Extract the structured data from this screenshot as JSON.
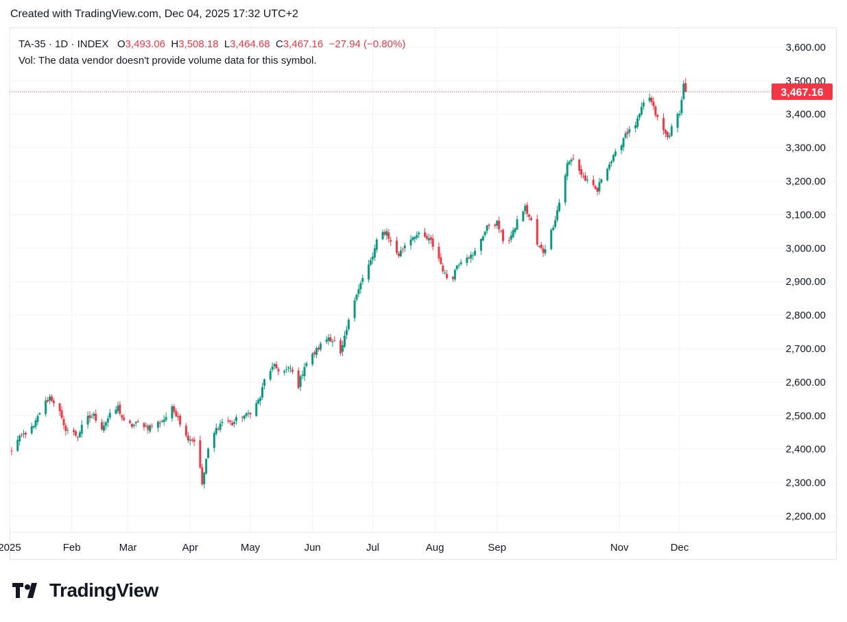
{
  "caption": "Created with TradingView.com, Dec 04, 2025 17:32 UTC+2",
  "legend": {
    "symbol": "TA-35 · 1D · INDEX",
    "o_label": "O",
    "o_value": "3,493.06",
    "h_label": "H",
    "h_value": "3,508.18",
    "l_label": "L",
    "l_value": "3,464.68",
    "c_label": "C",
    "c_value": "3,467.16",
    "change": "−27.94 (−0.80%)"
  },
  "vol_text": "Vol: The data vendor doesn't provide volume data for this symbol.",
  "last_price_label": "3,467.16",
  "brand": "TradingView",
  "colors": {
    "up": "#089981",
    "down": "#f23645",
    "grid": "#f0f3fa",
    "text": "#131722",
    "frame": "#e0e3eb"
  },
  "chart_data": {
    "type": "candlestick",
    "symbol": "TA-35",
    "interval": "1D",
    "y_ticks": [
      "2,200.00",
      "2,300.00",
      "2,400.00",
      "2,500.00",
      "2,600.00",
      "2,700.00",
      "2,800.00",
      "2,900.00",
      "3,000.00",
      "3,100.00",
      "3,200.00",
      "3,300.00",
      "3,400.00",
      "3,500.00",
      "3,600.00"
    ],
    "ylim": [
      2150,
      3650
    ],
    "x_ticks": [
      {
        "label": "2025",
        "date": "2025-01-01"
      },
      {
        "label": "Feb",
        "date": "2025-02-01"
      },
      {
        "label": "Mar",
        "date": "2025-03-01"
      },
      {
        "label": "Apr",
        "date": "2025-04-01"
      },
      {
        "label": "May",
        "date": "2025-05-01"
      },
      {
        "label": "Jun",
        "date": "2025-06-01"
      },
      {
        "label": "Jul",
        "date": "2025-07-01"
      },
      {
        "label": "Aug",
        "date": "2025-08-01"
      },
      {
        "label": "Sep",
        "date": "2025-09-01"
      },
      {
        "label": "Nov",
        "date": "2025-11-01"
      },
      {
        "label": "Dec",
        "date": "2025-12-01"
      }
    ],
    "xlim": [
      "2025-01-01",
      "2025-12-15"
    ],
    "last_price": 3467.16,
    "close_path": [
      [
        "2025-01-01",
        2390
      ],
      [
        "2025-01-05",
        2425
      ],
      [
        "2025-01-09",
        2450
      ],
      [
        "2025-01-13",
        2465
      ],
      [
        "2025-01-17",
        2525
      ],
      [
        "2025-01-21",
        2555
      ],
      [
        "2025-01-25",
        2530
      ],
      [
        "2025-01-28",
        2465
      ],
      [
        "2025-02-01",
        2450
      ],
      [
        "2025-02-04",
        2440
      ],
      [
        "2025-02-08",
        2490
      ],
      [
        "2025-02-12",
        2500
      ],
      [
        "2025-02-16",
        2465
      ],
      [
        "2025-02-20",
        2500
      ],
      [
        "2025-02-24",
        2525
      ],
      [
        "2025-02-27",
        2480
      ],
      [
        "2025-03-03",
        2470
      ],
      [
        "2025-03-07",
        2480
      ],
      [
        "2025-03-11",
        2465
      ],
      [
        "2025-03-15",
        2475
      ],
      [
        "2025-03-19",
        2490
      ],
      [
        "2025-03-23",
        2520
      ],
      [
        "2025-03-26",
        2500
      ],
      [
        "2025-03-29",
        2440
      ],
      [
        "2025-04-02",
        2430
      ],
      [
        "2025-04-05",
        2410
      ],
      [
        "2025-04-07",
        2290
      ],
      [
        "2025-04-09",
        2370
      ],
      [
        "2025-04-11",
        2420
      ],
      [
        "2025-04-14",
        2460
      ],
      [
        "2025-04-18",
        2490
      ],
      [
        "2025-04-22",
        2475
      ],
      [
        "2025-04-26",
        2500
      ],
      [
        "2025-04-29",
        2500
      ],
      [
        "2025-05-03",
        2525
      ],
      [
        "2025-05-06",
        2555
      ],
      [
        "2025-05-09",
        2630
      ],
      [
        "2025-05-13",
        2645
      ],
      [
        "2025-05-17",
        2630
      ],
      [
        "2025-05-21",
        2640
      ],
      [
        "2025-05-25",
        2590
      ],
      [
        "2025-05-28",
        2650
      ],
      [
        "2025-06-01",
        2680
      ],
      [
        "2025-06-05",
        2710
      ],
      [
        "2025-06-09",
        2735
      ],
      [
        "2025-06-12",
        2720
      ],
      [
        "2025-06-15",
        2680
      ],
      [
        "2025-06-19",
        2780
      ],
      [
        "2025-06-23",
        2870
      ],
      [
        "2025-06-27",
        2920
      ],
      [
        "2025-07-01",
        2975
      ],
      [
        "2025-07-04",
        3040
      ],
      [
        "2025-07-08",
        3050
      ],
      [
        "2025-07-11",
        3000
      ],
      [
        "2025-07-14",
        2980
      ],
      [
        "2025-07-18",
        3020
      ],
      [
        "2025-07-22",
        3040
      ],
      [
        "2025-07-26",
        3035
      ],
      [
        "2025-07-30",
        3020
      ],
      [
        "2025-08-03",
        2970
      ],
      [
        "2025-08-06",
        2920
      ],
      [
        "2025-08-09",
        2900
      ],
      [
        "2025-08-12",
        2950
      ],
      [
        "2025-08-16",
        2980
      ],
      [
        "2025-08-20",
        2975
      ],
      [
        "2025-08-24",
        3030
      ],
      [
        "2025-08-28",
        3070
      ],
      [
        "2025-09-01",
        3075
      ],
      [
        "2025-09-05",
        3010
      ],
      [
        "2025-09-09",
        3045
      ],
      [
        "2025-09-12",
        3100
      ],
      [
        "2025-09-15",
        3120
      ],
      [
        "2025-09-18",
        3080
      ],
      [
        "2025-09-21",
        3010
      ],
      [
        "2025-09-24",
        2990
      ],
      [
        "2025-09-27",
        3030
      ],
      [
        "2025-09-30",
        3090
      ],
      [
        "2025-10-03",
        3160
      ],
      [
        "2025-10-06",
        3250
      ],
      [
        "2025-10-09",
        3270
      ],
      [
        "2025-10-13",
        3220
      ],
      [
        "2025-10-17",
        3190
      ],
      [
        "2025-10-21",
        3170
      ],
      [
        "2025-10-24",
        3230
      ],
      [
        "2025-10-28",
        3260
      ],
      [
        "2025-11-01",
        3300
      ],
      [
        "2025-11-04",
        3345
      ],
      [
        "2025-11-07",
        3350
      ],
      [
        "2025-11-10",
        3380
      ],
      [
        "2025-11-13",
        3430
      ],
      [
        "2025-11-16",
        3450
      ],
      [
        "2025-11-19",
        3400
      ],
      [
        "2025-11-22",
        3360
      ],
      [
        "2025-11-25",
        3330
      ],
      [
        "2025-11-28",
        3370
      ],
      [
        "2025-12-01",
        3410
      ],
      [
        "2025-12-02",
        3440
      ],
      [
        "2025-12-03",
        3495
      ],
      [
        "2025-12-04",
        3467.16
      ]
    ]
  }
}
